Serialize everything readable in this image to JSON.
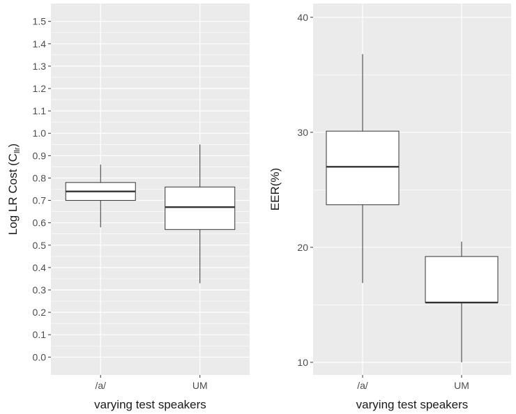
{
  "chart_data": [
    {
      "type": "box",
      "xlabel": "varying test speakers",
      "ylabel": "Log LR Cost (C",
      "ylabel_subscript": "llr",
      "ylabel_close": ")",
      "categories": [
        "/a/",
        "UM"
      ],
      "ylim": [
        -0.08,
        1.58
      ],
      "yticks": [
        0.0,
        0.1,
        0.2,
        0.3,
        0.4,
        0.5,
        0.6,
        0.7,
        0.8,
        0.9,
        1.0,
        1.1,
        1.2,
        1.3,
        1.4,
        1.5
      ],
      "ytick_labels": [
        "0.0",
        "0.1",
        "0.2",
        "0.3",
        "0.4",
        "0.5",
        "0.6",
        "0.7",
        "0.8",
        "0.9",
        "1.0",
        "1.1",
        "1.2",
        "1.3",
        "1.4",
        "1.5"
      ],
      "boxes": [
        {
          "category": "/a/",
          "min": 0.58,
          "q1": 0.7,
          "median": 0.74,
          "q3": 0.78,
          "max": 0.86
        },
        {
          "category": "UM",
          "min": 0.33,
          "q1": 0.57,
          "median": 0.67,
          "q3": 0.76,
          "max": 0.95
        }
      ],
      "grid": true,
      "background": "#ebebeb"
    },
    {
      "type": "box",
      "xlabel": "varying test speakers",
      "ylabel": "EER(%)",
      "categories": [
        "/a/",
        "UM"
      ],
      "ylim": [
        8.9,
        41.2
      ],
      "yticks": [
        10,
        20,
        30,
        40
      ],
      "ytick_labels": [
        "10",
        "20",
        "30",
        "40"
      ],
      "boxes": [
        {
          "category": "/a/",
          "min": 16.9,
          "q1": 23.7,
          "median": 27.0,
          "q3": 30.1,
          "max": 36.8
        },
        {
          "category": "UM",
          "min": 10.0,
          "q1": 15.2,
          "median": 15.2,
          "q3": 19.2,
          "max": 20.5
        }
      ],
      "grid": true,
      "background": "#ebebeb"
    }
  ]
}
